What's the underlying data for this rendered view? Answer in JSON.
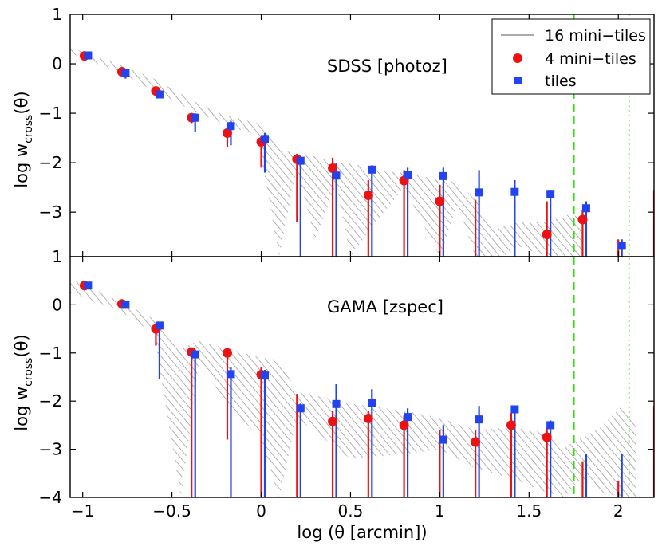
{
  "chart_data": {
    "type": "scatter",
    "xlabel": "log (θ [arcmin])",
    "x_ticks": [
      -1,
      -0.5,
      0,
      0.5,
      1,
      1.5,
      2
    ],
    "x_tick_labels": [
      "−1",
      "−0.5",
      "0",
      "0.5",
      "1",
      "1.5",
      "2"
    ],
    "xlim": [
      -1.07,
      2.2
    ],
    "vlines": [
      {
        "x": 1.75,
        "style": "dashed",
        "color": "#33dd11"
      },
      {
        "x": 2.06,
        "style": "dotted",
        "color": "#33dd11"
      }
    ],
    "legend": {
      "position": "top-right",
      "entries": [
        {
          "label": "16 mini−tiles",
          "kind": "line",
          "color": "#777777"
        },
        {
          "label": "4 mini−tiles",
          "kind": "circle",
          "color": "#ee1111"
        },
        {
          "label": "tiles",
          "kind": "square",
          "color": "#2244ee"
        }
      ]
    },
    "panels": [
      {
        "title": "SDSS [photoz]",
        "ylabel_main": "log w",
        "ylabel_sub": "cross",
        "ylabel_end": "(θ)",
        "ylim": [
          -3.9,
          1
        ],
        "y_ticks": [
          1,
          0,
          -1,
          -2,
          -3
        ],
        "y_tick_labels": [
          "1",
          "0",
          "−1",
          "−2",
          "−3"
        ],
        "band": {
          "x": [
            -1.07,
            -0.78,
            -0.6,
            -0.38,
            -0.19,
            -0.02,
            0.1,
            0.2,
            0.3,
            0.42,
            0.5,
            0.62,
            0.8,
            1.0,
            1.1,
            1.2,
            1.3,
            1.35,
            1.45,
            1.6,
            1.72,
            1.8
          ],
          "upper": [
            0.33,
            -0.03,
            -0.3,
            -0.75,
            -1.05,
            -1.2,
            -1.7,
            -1.85,
            -1.87,
            -2.0,
            -2.0,
            -2.15,
            -2.2,
            -2.35,
            -2.4,
            -2.75,
            -3.35,
            -3.3,
            -3.2,
            -3.2,
            -3.05,
            -3.1
          ],
          "lower": [
            0.22,
            -0.2,
            -0.55,
            -0.95,
            -1.25,
            -1.45,
            -3.9,
            -2.1,
            -3.55,
            -2.45,
            -3.9,
            -3.3,
            -2.5,
            -3.9,
            -2.85,
            -3.9,
            -3.9,
            -3.9,
            -3.7,
            -3.9,
            -3.9,
            -3.9
          ]
        },
        "series": [
          {
            "name": "4 mini−tiles",
            "color": "#ee1111",
            "points": [
              {
                "x": -0.99,
                "y": 0.16,
                "lo": 0.14,
                "hi": 0.18
              },
              {
                "x": -0.78,
                "y": -0.16,
                "lo": -0.19,
                "hi": -0.13
              },
              {
                "x": -0.59,
                "y": -0.55,
                "lo": -0.6,
                "hi": -0.5
              },
              {
                "x": -0.39,
                "y": -1.09,
                "lo": -1.2,
                "hi": -1.0
              },
              {
                "x": -0.19,
                "y": -1.4,
                "lo": -1.68,
                "hi": -1.2
              },
              {
                "x": 0.0,
                "y": -1.58,
                "lo": -2.1,
                "hi": -1.45
              },
              {
                "x": 0.2,
                "y": -1.93,
                "lo": -3.2,
                "hi": -1.82
              },
              {
                "x": 0.4,
                "y": -2.11,
                "lo": -3.9,
                "hi": -1.9
              },
              {
                "x": 0.6,
                "y": -2.66,
                "lo": -3.9,
                "hi": -2.35
              },
              {
                "x": 0.8,
                "y": -2.36,
                "lo": -3.9,
                "hi": -2.15
              },
              {
                "x": 1.0,
                "y": -2.78,
                "lo": -3.9,
                "hi": -2.45
              },
              {
                "x": 1.2,
                "y": null,
                "lo": -3.9,
                "hi": -2.75
              },
              {
                "x": 1.6,
                "y": -3.45,
                "lo": -3.9,
                "hi": -2.78
              },
              {
                "x": 1.8,
                "y": -3.15,
                "lo": -3.9,
                "hi": -2.95
              },
              {
                "x": 2.0,
                "y": null,
                "lo": -3.9,
                "hi": -3.55
              },
              {
                "x": 2.2,
                "y": null,
                "lo": -3.9,
                "hi": -2.55
              }
            ]
          },
          {
            "name": "tiles",
            "color": "#2244ee",
            "points": [
              {
                "x": -0.97,
                "y": 0.17,
                "lo": 0.15,
                "hi": 0.19
              },
              {
                "x": -0.76,
                "y": -0.18,
                "lo": -0.3,
                "hi": -0.1
              },
              {
                "x": -0.57,
                "y": -0.62,
                "lo": -0.68,
                "hi": -0.55
              },
              {
                "x": -0.37,
                "y": -1.09,
                "lo": -1.38,
                "hi": -1.0
              },
              {
                "x": -0.17,
                "y": -1.26,
                "lo": -1.65,
                "hi": -1.15
              },
              {
                "x": 0.02,
                "y": -1.52,
                "lo": -2.2,
                "hi": -1.4
              },
              {
                "x": 0.22,
                "y": -1.96,
                "lo": -3.9,
                "hi": -1.86
              },
              {
                "x": 0.42,
                "y": -2.26,
                "lo": -3.9,
                "hi": -2.0
              },
              {
                "x": 0.62,
                "y": -2.14,
                "lo": -3.9,
                "hi": -2.05
              },
              {
                "x": 0.82,
                "y": -2.24,
                "lo": -3.9,
                "hi": -2.1
              },
              {
                "x": 1.02,
                "y": -2.27,
                "lo": -3.9,
                "hi": -2.1
              },
              {
                "x": 1.22,
                "y": -2.6,
                "lo": -3.9,
                "hi": -2.15
              },
              {
                "x": 1.42,
                "y": -2.59,
                "lo": -3.9,
                "hi": -2.35
              },
              {
                "x": 1.62,
                "y": -2.63,
                "lo": -3.9,
                "hi": -2.55
              },
              {
                "x": 1.82,
                "y": -2.92,
                "lo": -3.9,
                "hi": -2.78
              },
              {
                "x": 2.02,
                "y": -3.68,
                "lo": -3.9,
                "hi": -3.55
              }
            ]
          }
        ]
      },
      {
        "title": "GAMA [zspec]",
        "ylabel_main": "log w",
        "ylabel_sub": "cross",
        "ylabel_end": "(θ)",
        "ylim": [
          -4,
          1
        ],
        "y_ticks": [
          1,
          0,
          -1,
          -2,
          -3,
          -4
        ],
        "y_tick_labels": [
          "1",
          "0",
          "−1",
          "−2",
          "−3",
          "−4"
        ],
        "band": {
          "x": [
            -1.07,
            -0.8,
            -0.6,
            -0.45,
            -0.35,
            -0.2,
            0.0,
            0.1,
            0.2,
            0.5,
            0.8,
            1.0,
            1.2,
            1.4,
            1.6,
            1.7,
            1.8,
            1.9,
            2.02,
            2.1
          ],
          "upper": [
            0.55,
            0.1,
            -0.3,
            -0.9,
            -0.75,
            -0.9,
            -1.1,
            -1.15,
            -1.8,
            -2.05,
            -2.2,
            -2.35,
            -2.6,
            -2.55,
            -2.65,
            -2.95,
            -2.75,
            -2.55,
            -2.1,
            -2.4
          ],
          "lower": [
            0.25,
            -0.1,
            -0.6,
            -4.0,
            -1.2,
            -2.0,
            -2.8,
            -4.0,
            -2.35,
            -3.2,
            -3.1,
            -3.0,
            -3.4,
            -3.6,
            -3.9,
            -4.0,
            -3.6,
            -3.9,
            -4.0,
            -4.0
          ]
        },
        "series": [
          {
            "name": "4 mini−tiles",
            "color": "#ee1111",
            "points": [
              {
                "x": -0.99,
                "y": 0.4,
                "lo": 0.34,
                "hi": 0.45
              },
              {
                "x": -0.78,
                "y": 0.02,
                "lo": -0.02,
                "hi": 0.06
              },
              {
                "x": -0.59,
                "y": -0.5,
                "lo": -0.85,
                "hi": -0.4
              },
              {
                "x": -0.39,
                "y": -0.98,
                "lo": -4.0,
                "hi": -0.9
              },
              {
                "x": -0.19,
                "y": -1.0,
                "lo": -2.8,
                "hi": -0.9
              },
              {
                "x": 0.0,
                "y": -1.45,
                "lo": -4.0,
                "hi": -1.3
              },
              {
                "x": 0.2,
                "y": null,
                "lo": -4.0,
                "hi": -1.85
              },
              {
                "x": 0.4,
                "y": -2.42,
                "lo": -4.0,
                "hi": -2.2
              },
              {
                "x": 0.6,
                "y": -2.36,
                "lo": -4.0,
                "hi": -2.2
              },
              {
                "x": 0.8,
                "y": -2.5,
                "lo": -4.0,
                "hi": -2.3
              },
              {
                "x": 1.0,
                "y": null,
                "lo": -4.0,
                "hi": -2.6
              },
              {
                "x": 1.2,
                "y": -2.85,
                "lo": -4.0,
                "hi": -2.6
              },
              {
                "x": 1.4,
                "y": -2.5,
                "lo": -4.0,
                "hi": -2.25
              },
              {
                "x": 1.6,
                "y": -2.75,
                "lo": -4.0,
                "hi": -2.55
              },
              {
                "x": 1.8,
                "y": null,
                "lo": -4.0,
                "hi": -3.25
              },
              {
                "x": 2.0,
                "y": null,
                "lo": -4.0,
                "hi": -3.65
              },
              {
                "x": 2.2,
                "y": null,
                "lo": -4.0,
                "hi": -2.1
              }
            ]
          },
          {
            "name": "tiles",
            "color": "#2244ee",
            "points": [
              {
                "x": -0.97,
                "y": 0.4,
                "lo": 0.36,
                "hi": 0.44
              },
              {
                "x": -0.76,
                "y": 0.0,
                "lo": -0.05,
                "hi": 0.05
              },
              {
                "x": -0.57,
                "y": -0.43,
                "lo": -1.55,
                "hi": -0.35
              },
              {
                "x": -0.37,
                "y": -1.03,
                "lo": -4.0,
                "hi": -0.95
              },
              {
                "x": -0.17,
                "y": -1.44,
                "lo": -4.0,
                "hi": -1.3
              },
              {
                "x": 0.02,
                "y": -1.47,
                "lo": -4.0,
                "hi": -1.35
              },
              {
                "x": 0.22,
                "y": -2.15,
                "lo": -4.0,
                "hi": -2.05
              },
              {
                "x": 0.42,
                "y": -2.06,
                "lo": -4.0,
                "hi": -1.65
              },
              {
                "x": 0.62,
                "y": -2.03,
                "lo": -4.0,
                "hi": -1.75
              },
              {
                "x": 0.82,
                "y": -2.33,
                "lo": -4.0,
                "hi": -2.15
              },
              {
                "x": 1.02,
                "y": -2.8,
                "lo": -4.0,
                "hi": -2.5
              },
              {
                "x": 1.22,
                "y": -2.38,
                "lo": -4.0,
                "hi": -2.1
              },
              {
                "x": 1.42,
                "y": -2.17,
                "lo": -4.0,
                "hi": -2.1
              },
              {
                "x": 1.62,
                "y": -2.5,
                "lo": -4.0,
                "hi": -2.4
              },
              {
                "x": 1.82,
                "y": null,
                "lo": -4.0,
                "hi": -3.1
              },
              {
                "x": 2.02,
                "y": null,
                "lo": -4.0,
                "hi": -3.1
              }
            ]
          }
        ]
      }
    ]
  }
}
